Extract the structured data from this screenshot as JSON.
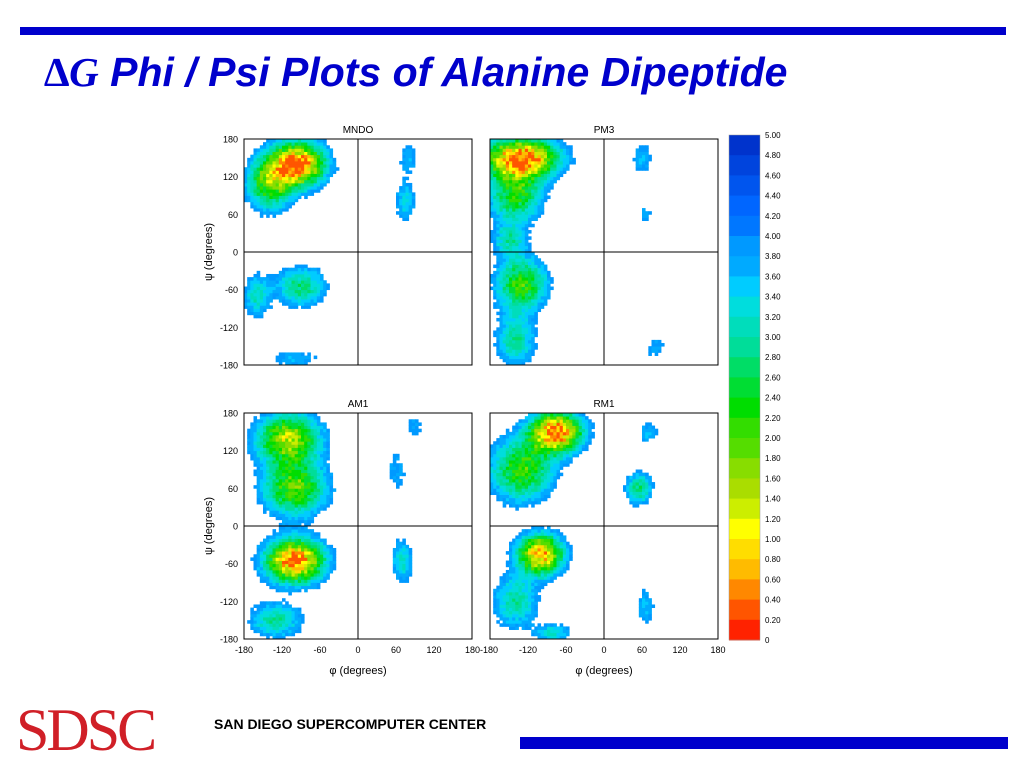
{
  "slide": {
    "title_symbol": "∆G",
    "title_text": "Phi / Psi Plots of Alanine Dipeptide",
    "logo": "SDSC",
    "center_name": "SAN DIEGO SUPERCOMPUTER CENTER"
  },
  "colors": {
    "accent_bar": "#0000cc",
    "title": "#0000cc",
    "logo": "#d01f27"
  },
  "chart_data": {
    "type": "heatmap",
    "panels": [
      {
        "title": "MNDO",
        "regions": [
          {
            "phi": -95,
            "psi": 140,
            "sphi": 30,
            "spsi": 24,
            "depth": 1.0
          },
          {
            "phi": -140,
            "psi": 110,
            "sphi": 25,
            "spsi": 30,
            "depth": 0.55
          },
          {
            "phi": -90,
            "psi": -55,
            "sphi": 28,
            "spsi": 22,
            "depth": 0.4
          },
          {
            "phi": -160,
            "psi": -70,
            "sphi": 15,
            "spsi": 25,
            "depth": 0.3
          },
          {
            "phi": 75,
            "psi": 80,
            "sphi": 12,
            "spsi": 25,
            "depth": 0.25
          },
          {
            "phi": 80,
            "psi": 150,
            "sphi": 12,
            "spsi": 20,
            "depth": 0.18
          },
          {
            "phi": -100,
            "psi": -170,
            "sphi": 30,
            "spsi": 10,
            "depth": 0.2
          }
        ]
      },
      {
        "title": "PM3",
        "regions": [
          {
            "phi": -130,
            "psi": 150,
            "sphi": 40,
            "spsi": 22,
            "depth": 1.0
          },
          {
            "phi": -140,
            "psi": 90,
            "sphi": 30,
            "spsi": 30,
            "depth": 0.5
          },
          {
            "phi": -130,
            "psi": -50,
            "sphi": 28,
            "spsi": 30,
            "depth": 0.55
          },
          {
            "phi": -140,
            "psi": -140,
            "sphi": 22,
            "spsi": 30,
            "depth": 0.35
          },
          {
            "phi": -150,
            "psi": 20,
            "sphi": 18,
            "spsi": 18,
            "depth": 0.3
          },
          {
            "phi": 60,
            "psi": 150,
            "sphi": 12,
            "spsi": 20,
            "depth": 0.2
          },
          {
            "phi": 65,
            "psi": 60,
            "sphi": 10,
            "spsi": 15,
            "depth": 0.15
          },
          {
            "phi": 80,
            "psi": -150,
            "sphi": 15,
            "spsi": 20,
            "depth": 0.15
          }
        ]
      },
      {
        "title": "AM1",
        "regions": [
          {
            "phi": -100,
            "psi": -55,
            "sphi": 32,
            "spsi": 24,
            "depth": 1.0
          },
          {
            "phi": -110,
            "psi": 140,
            "sphi": 35,
            "spsi": 28,
            "depth": 0.7
          },
          {
            "phi": -100,
            "psi": 60,
            "sphi": 35,
            "spsi": 30,
            "depth": 0.6
          },
          {
            "phi": -130,
            "psi": -150,
            "sphi": 30,
            "spsi": 20,
            "depth": 0.35
          },
          {
            "phi": 70,
            "psi": -55,
            "sphi": 12,
            "spsi": 25,
            "depth": 0.3
          },
          {
            "phi": 60,
            "psi": 90,
            "sphi": 15,
            "spsi": 35,
            "depth": 0.15
          },
          {
            "phi": 90,
            "psi": 160,
            "sphi": 15,
            "spsi": 15,
            "depth": 0.15
          }
        ]
      },
      {
        "title": "RM1",
        "regions": [
          {
            "phi": -75,
            "psi": 150,
            "sphi": 28,
            "spsi": 22,
            "depth": 1.0
          },
          {
            "phi": -100,
            "psi": -45,
            "sphi": 25,
            "spsi": 22,
            "depth": 0.9
          },
          {
            "phi": -130,
            "psi": 90,
            "sphi": 35,
            "spsi": 35,
            "depth": 0.55
          },
          {
            "phi": -140,
            "psi": -120,
            "sphi": 25,
            "spsi": 30,
            "depth": 0.35
          },
          {
            "phi": -80,
            "psi": -170,
            "sphi": 20,
            "spsi": 10,
            "depth": 0.3
          },
          {
            "phi": 55,
            "psi": 60,
            "sphi": 15,
            "spsi": 18,
            "depth": 0.4
          },
          {
            "phi": 65,
            "psi": -130,
            "sphi": 12,
            "spsi": 25,
            "depth": 0.2
          },
          {
            "phi": 70,
            "psi": 150,
            "sphi": 12,
            "spsi": 15,
            "depth": 0.2
          }
        ]
      }
    ],
    "xlabel": "φ (degrees)",
    "ylabel": "ψ (degrees)",
    "xlim": [
      -180,
      180
    ],
    "ylim": [
      -180,
      180
    ],
    "xticks": [
      -180,
      -120,
      -60,
      0,
      60,
      120,
      180
    ],
    "xtick_labels_left": [
      "-180",
      "-120",
      "-60",
      "0",
      "60",
      "120",
      "180-180"
    ],
    "xtick_labels_right": [
      "",
      "-120",
      "-60",
      "0",
      "60",
      "120",
      "180"
    ],
    "yticks": [
      180,
      120,
      60,
      0,
      -60,
      -120,
      -180
    ],
    "ytick_labels": [
      "180",
      "120",
      "60",
      "0",
      "-60",
      "-120",
      "-180"
    ],
    "colorbar": {
      "labels": [
        "5.00",
        "4.80",
        "4.60",
        "4.40",
        "4.20",
        "4.00",
        "3.80",
        "3.60",
        "3.40",
        "3.20",
        "3.00",
        "2.80",
        "2.60",
        "2.40",
        "2.20",
        "2.00",
        "1.80",
        "1.60",
        "1.40",
        "1.20",
        "1.00",
        "0.80",
        "0.60",
        "0.40",
        "0.20",
        "0"
      ],
      "colors": [
        "#0033cc",
        "#0044dd",
        "#0055ee",
        "#0066ff",
        "#0077ff",
        "#0099ff",
        "#00aaff",
        "#00ccff",
        "#00dddd",
        "#00ddbb",
        "#00dd99",
        "#00dd66",
        "#00dd33",
        "#00dd00",
        "#33dd00",
        "#55dd00",
        "#88dd00",
        "#aadd00",
        "#ccee00",
        "#ffff00",
        "#ffdd00",
        "#ffbb00",
        "#ff8800",
        "#ff5500",
        "#ff2200"
      ]
    }
  }
}
